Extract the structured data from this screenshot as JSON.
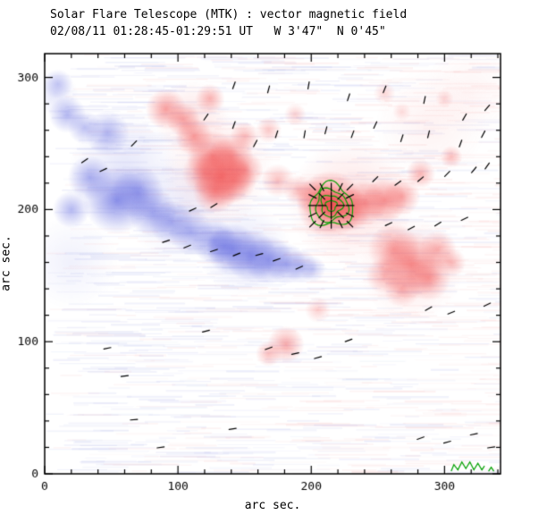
{
  "header": {
    "title": "Solar Flare Telescope (MTK) : vector magnetic field",
    "subtitle": "02/08/11 01:28:45-01:29:51 UT   W 3'47\"  N 0'45\""
  },
  "chart_data": {
    "type": "heatmap",
    "title": "Solar Flare Telescope (MTK) : vector magnetic field",
    "subtitle": "02/08/11 01:28:45-01:29:51 UT   W 3'47\"  N 0'45\"",
    "xlabel": "arc sec.",
    "ylabel": "arc sec.",
    "xlim": [
      0,
      342
    ],
    "ylim": [
      0,
      318
    ],
    "xticks": [
      0,
      100,
      200,
      300
    ],
    "yticks": [
      0,
      100,
      200,
      300
    ],
    "minor_step": 20,
    "grid": false,
    "legend": false,
    "colors": {
      "positive": "#f04646",
      "negative": "#6970e1",
      "contour": "#00a000",
      "vector": "#000000",
      "frame": "#000000"
    },
    "contours": {
      "center": [
        215,
        203
      ],
      "radii": [
        4,
        8,
        12,
        16
      ],
      "squiggles": [
        [
          [
            305,
            2
          ],
          [
            307,
            7
          ],
          [
            310,
            3
          ],
          [
            313,
            9
          ],
          [
            316,
            4
          ],
          [
            319,
            9
          ],
          [
            322,
            3
          ],
          [
            325,
            8
          ],
          [
            328,
            3
          ],
          [
            330,
            6
          ]
        ],
        [
          [
            333,
            2
          ],
          [
            335,
            5
          ],
          [
            337,
            2
          ]
        ]
      ]
    },
    "vector_cluster": {
      "center": [
        215,
        203
      ],
      "cols": 5,
      "rows": 5,
      "spacing": 7,
      "length": 9
    },
    "vectors": [
      [
        142,
        294,
        70
      ],
      [
        168,
        291,
        75
      ],
      [
        198,
        294,
        80
      ],
      [
        228,
        285,
        72
      ],
      [
        255,
        291,
        68
      ],
      [
        285,
        283,
        78
      ],
      [
        315,
        270,
        60
      ],
      [
        332,
        277,
        50
      ],
      [
        121,
        270,
        55
      ],
      [
        142,
        264,
        70
      ],
      [
        158,
        250,
        62
      ],
      [
        174,
        257,
        72
      ],
      [
        195,
        257,
        80
      ],
      [
        211,
        260,
        75
      ],
      [
        231,
        257,
        70
      ],
      [
        248,
        264,
        65
      ],
      [
        268,
        254,
        72
      ],
      [
        288,
        257,
        76
      ],
      [
        312,
        250,
        70
      ],
      [
        329,
        257,
        62
      ],
      [
        30,
        237,
        35
      ],
      [
        44,
        230,
        25
      ],
      [
        67,
        250,
        45
      ],
      [
        111,
        200,
        25
      ],
      [
        127,
        203,
        32
      ],
      [
        91,
        176,
        18
      ],
      [
        107,
        172,
        22
      ],
      [
        127,
        169,
        18
      ],
      [
        144,
        166,
        22
      ],
      [
        161,
        166,
        16
      ],
      [
        174,
        162,
        20
      ],
      [
        191,
        156,
        24
      ],
      [
        248,
        223,
        45
      ],
      [
        265,
        220,
        35
      ],
      [
        282,
        223,
        40
      ],
      [
        302,
        227,
        45
      ],
      [
        322,
        230,
        50
      ],
      [
        332,
        233,
        55
      ],
      [
        258,
        189,
        25
      ],
      [
        275,
        186,
        28
      ],
      [
        295,
        189,
        32
      ],
      [
        315,
        193,
        25
      ],
      [
        47,
        95,
        12
      ],
      [
        60,
        74,
        8
      ],
      [
        121,
        108,
        15
      ],
      [
        168,
        95,
        20
      ],
      [
        188,
        91,
        12
      ],
      [
        205,
        88,
        16
      ],
      [
        228,
        101,
        20
      ],
      [
        288,
        125,
        30
      ],
      [
        305,
        122,
        22
      ],
      [
        332,
        128,
        26
      ],
      [
        67,
        41,
        5
      ],
      [
        87,
        20,
        8
      ],
      [
        141,
        34,
        10
      ],
      [
        282,
        27,
        20
      ],
      [
        302,
        24,
        15
      ],
      [
        322,
        30,
        12
      ],
      [
        335,
        20,
        8
      ]
    ],
    "regions_negative": [
      [
        10,
        295,
        8,
        0.35
      ],
      [
        17,
        272,
        10,
        0.5
      ],
      [
        30,
        262,
        9,
        0.45
      ],
      [
        47,
        258,
        12,
        0.5
      ],
      [
        34,
        224,
        12,
        0.55
      ],
      [
        20,
        200,
        10,
        0.5
      ],
      [
        54,
        207,
        18,
        0.75
      ],
      [
        70,
        213,
        14,
        0.65
      ],
      [
        81,
        198,
        13,
        0.6
      ],
      [
        95,
        190,
        12,
        0.55
      ],
      [
        110,
        183,
        12,
        0.55
      ],
      [
        127,
        176,
        12,
        0.6
      ],
      [
        135,
        172,
        10,
        0.5
      ],
      [
        141,
        170,
        14,
        0.65
      ],
      [
        155,
        165,
        14,
        0.7
      ],
      [
        168,
        162,
        13,
        0.65
      ],
      [
        181,
        159,
        11,
        0.55
      ],
      [
        192,
        157,
        9,
        0.45
      ],
      [
        201,
        155,
        7,
        0.35
      ],
      [
        60,
        230,
        30,
        0.18
      ],
      [
        100,
        200,
        28,
        0.15
      ],
      [
        150,
        170,
        25,
        0.18
      ],
      [
        8,
        288,
        12,
        0.18
      ],
      [
        20,
        160,
        25,
        0.1
      ]
    ],
    "regions_positive": [
      [
        91,
        276,
        11,
        0.5
      ],
      [
        104,
        268,
        9,
        0.45
      ],
      [
        124,
        284,
        8,
        0.4
      ],
      [
        112,
        255,
        10,
        0.5
      ],
      [
        126,
        240,
        14,
        0.55
      ],
      [
        133,
        225,
        16,
        0.6
      ],
      [
        120,
        228,
        12,
        0.45
      ],
      [
        140,
        240,
        12,
        0.5
      ],
      [
        128,
        214,
        12,
        0.55
      ],
      [
        142,
        222,
        12,
        0.55
      ],
      [
        150,
        230,
        10,
        0.45
      ],
      [
        150,
        255,
        8,
        0.35
      ],
      [
        168,
        260,
        7,
        0.3
      ],
      [
        188,
        272,
        6,
        0.25
      ],
      [
        175,
        222,
        9,
        0.35
      ],
      [
        190,
        215,
        8,
        0.35
      ],
      [
        214,
        204,
        18,
        0.7
      ],
      [
        214,
        204,
        10,
        0.85
      ],
      [
        228,
        200,
        12,
        0.55
      ],
      [
        202,
        210,
        10,
        0.45
      ],
      [
        240,
        205,
        12,
        0.5
      ],
      [
        255,
        207,
        12,
        0.55
      ],
      [
        268,
        210,
        10,
        0.45
      ],
      [
        282,
        227,
        8,
        0.4
      ],
      [
        305,
        240,
        6,
        0.35
      ],
      [
        262,
        170,
        14,
        0.45
      ],
      [
        275,
        158,
        18,
        0.55
      ],
      [
        288,
        148,
        12,
        0.45
      ],
      [
        268,
        140,
        10,
        0.35
      ],
      [
        295,
        170,
        10,
        0.4
      ],
      [
        305,
        160,
        8,
        0.35
      ],
      [
        255,
        150,
        10,
        0.35
      ],
      [
        181,
        98,
        10,
        0.45
      ],
      [
        168,
        91,
        7,
        0.35
      ],
      [
        205,
        124,
        7,
        0.25
      ],
      [
        255,
        288,
        6,
        0.22
      ],
      [
        268,
        274,
        5,
        0.18
      ],
      [
        300,
        284,
        5,
        0.2
      ],
      [
        230,
        205,
        34,
        0.18
      ],
      [
        130,
        232,
        30,
        0.15
      ],
      [
        275,
        155,
        28,
        0.15
      ],
      [
        110,
        270,
        20,
        0.15
      ],
      [
        290,
        265,
        30,
        0.07
      ],
      [
        320,
        290,
        25,
        0.05
      ]
    ],
    "noise": {
      "seed": 20110208,
      "streaks": 1400,
      "blue": "#8890dd",
      "red": "#f2a0a0"
    }
  }
}
